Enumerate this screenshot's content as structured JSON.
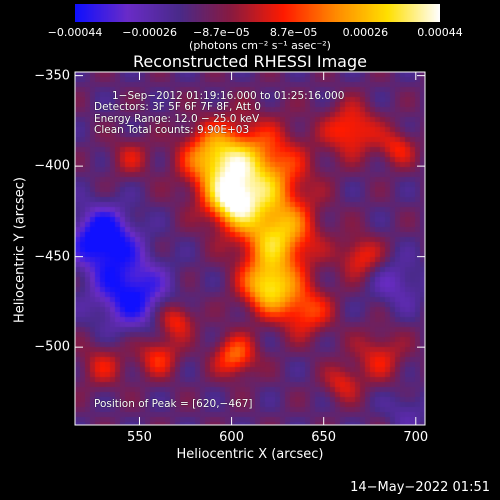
{
  "chart_data": {
    "type": "heatmap",
    "title": "Reconstructed RHESSI Image",
    "xlabel": "Heliocentric X (arcsec)",
    "ylabel": "Heliocentric Y (arcsec)",
    "xlim": [
      515,
      705
    ],
    "ylim": [
      -543,
      -348
    ],
    "x_ticks": [
      550,
      600,
      650,
      700
    ],
    "x_tick_labels": [
      "550",
      "600",
      "650",
      "700"
    ],
    "y_ticks": [
      -350,
      -400,
      -450,
      -500
    ],
    "y_tick_labels": [
      "−350",
      "−400",
      "−450",
      "−500"
    ],
    "colorbar": {
      "min": -0.00044,
      "max": 0.00044,
      "ticks": [
        -0.00044,
        -0.00026,
        -8.7e-05,
        8.7e-05,
        0.00026,
        0.00044
      ],
      "tick_labels": [
        "−0.00044",
        "−0.00026",
        "−8.7e−05",
        "8.7e−05",
        "0.00026",
        "0.00044"
      ],
      "unit": "(photons cm⁻² s⁻¹ asec⁻²)",
      "colors": [
        "#1010ff",
        "#6a2cc8",
        "#4a2a8a",
        "#8a1a40",
        "#ff1a00",
        "#ff8a00",
        "#ffe000",
        "#ffffff"
      ]
    },
    "annotations": {
      "time_range": "1−Sep−2012 01:19:16.000 to 01:25:16.000",
      "detectors": "Detectors: 3F 5F 6F 7F 8F, Att 0",
      "energy": "Energy Range: 12.0 − 25.0 keV",
      "clean": "Clean     Total counts: 9.90E+03",
      "peak": "Position of Peak = [620,−467]"
    },
    "sources": [
      {
        "x": 612,
        "y": -405,
        "sigma": 18,
        "amplitude": 0.00044
      },
      {
        "x": 625,
        "y": -440,
        "sigma": 14,
        "amplitude": 0.0004
      },
      {
        "x": 620,
        "y": -467,
        "sigma": 10,
        "amplitude": 0.00044
      },
      {
        "x": 590,
        "y": -395,
        "sigma": 12,
        "amplitude": 0.00032
      },
      {
        "x": 600,
        "y": -420,
        "sigma": 9,
        "amplitude": 0.00036
      },
      {
        "x": 640,
        "y": -480,
        "sigma": 10,
        "amplitude": 0.00026
      },
      {
        "x": 602,
        "y": -505,
        "sigma": 8,
        "amplitude": 0.0003
      },
      {
        "x": 570,
        "y": -485,
        "sigma": 7,
        "amplitude": 0.00024
      },
      {
        "x": 560,
        "y": -505,
        "sigma": 8,
        "amplitude": 0.00022
      },
      {
        "x": 665,
        "y": -380,
        "sigma": 10,
        "amplitude": 0.00026
      },
      {
        "x": 690,
        "y": -390,
        "sigma": 7,
        "amplitude": 0.0002
      },
      {
        "x": 670,
        "y": -450,
        "sigma": 8,
        "amplitude": 0.00022
      },
      {
        "x": 680,
        "y": -505,
        "sigma": 10,
        "amplitude": 0.00018
      },
      {
        "x": 545,
        "y": -395,
        "sigma": 8,
        "amplitude": 0.00014
      },
      {
        "x": 530,
        "y": -510,
        "sigma": 9,
        "amplitude": 0.00016
      },
      {
        "x": 660,
        "y": -520,
        "sigma": 7,
        "amplitude": 0.00018
      },
      {
        "x": 530,
        "y": -440,
        "sigma": 12,
        "amplitude": -0.00036
      },
      {
        "x": 545,
        "y": -470,
        "sigma": 14,
        "amplitude": -0.0003
      },
      {
        "x": 690,
        "y": -465,
        "sigma": 10,
        "amplitude": -0.00014
      },
      {
        "x": 695,
        "y": -535,
        "sigma": 8,
        "amplitude": -0.0001
      }
    ]
  },
  "timestamp": "14−May−2022 01:51"
}
